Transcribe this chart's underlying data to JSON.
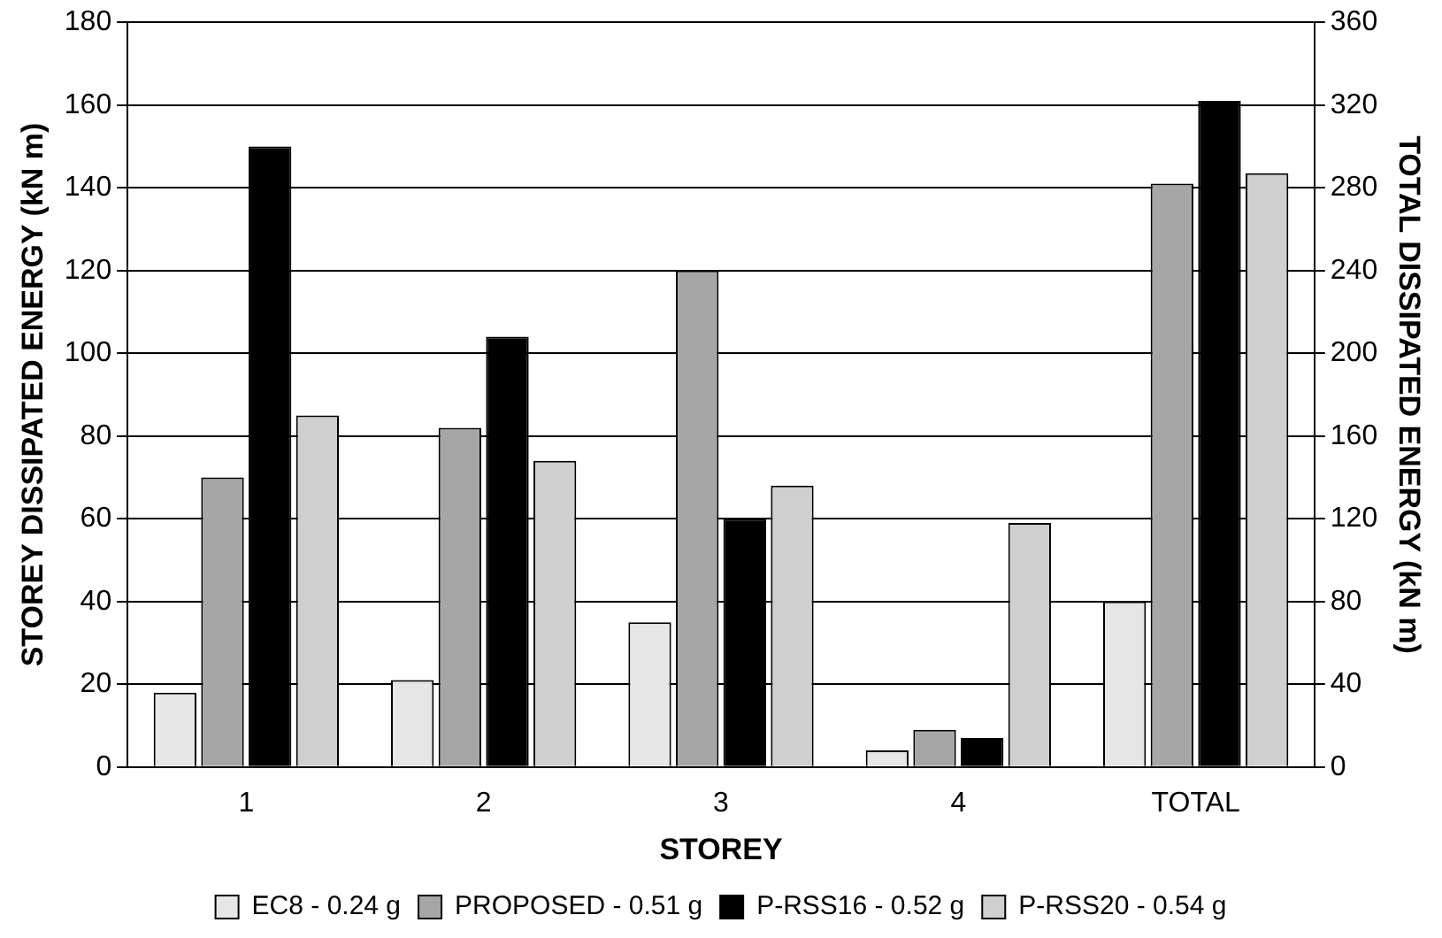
{
  "chart_data": {
    "type": "bar",
    "xlabel": "STOREY",
    "ylabel": "STOREY DISSIPATED ENERGY (kN m)",
    "y2label": "TOTAL DISSIPATED ENERGY (kN m)",
    "categories": [
      "1",
      "2",
      "3",
      "4",
      "TOTAL"
    ],
    "series": [
      {
        "name": "EC8 - 0.24 g",
        "color": "#e6e6e6",
        "values": [
          18,
          21,
          35,
          4,
          null
        ]
      },
      {
        "name": "PROPOSED - 0.51 g",
        "color": "#a6a6a6",
        "values": [
          70,
          82,
          120,
          9,
          null
        ]
      },
      {
        "name": "P-RSS16 - 0.52 g",
        "color": "#000000",
        "values": [
          150,
          104,
          60,
          7,
          null
        ]
      },
      {
        "name": "P-RSS20 - 0.54 g",
        "color": "#cfcfcf",
        "values": [
          85,
          74,
          68,
          59,
          null
        ]
      },
      {
        "color": "#e6e6e6",
        "axis": "y2",
        "values": [
          null,
          null,
          null,
          null,
          80
        ]
      },
      {
        "color": "#a6a6a6",
        "axis": "y2",
        "values": [
          null,
          null,
          null,
          null,
          282
        ]
      },
      {
        "color": "#000000",
        "axis": "y2",
        "values": [
          null,
          null,
          null,
          null,
          322
        ]
      },
      {
        "color": "#cfcfcf",
        "axis": "y2",
        "values": [
          null,
          null,
          null,
          null,
          287
        ]
      }
    ],
    "ylim": [
      0,
      180
    ],
    "yticks": [
      0,
      20,
      40,
      60,
      80,
      100,
      120,
      140,
      160,
      180
    ],
    "y2lim": [
      0,
      360
    ],
    "y2ticks": [
      0,
      40,
      80,
      120,
      160,
      200,
      240,
      280,
      320,
      360
    ],
    "grid": "y",
    "legend": "bottom"
  }
}
